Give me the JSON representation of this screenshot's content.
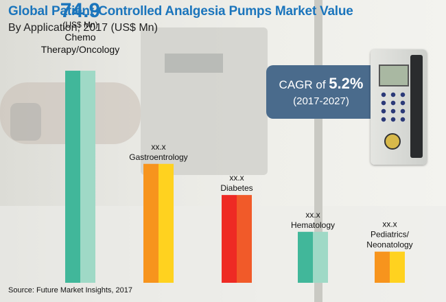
{
  "title": "Global Patient-Controlled Analgesia Pumps Market Value",
  "subtitle": "By Application, 2017 (US$ Mn)",
  "source": "Source: Future Market Insights, 2017",
  "cagr": {
    "prefix": "CAGR of ",
    "value": "5.2%",
    "range": "(2017-2027)"
  },
  "chart_data": {
    "type": "bar",
    "categories": [
      "Chemo Therapy/Oncology",
      "Gastroentrology",
      "Diabetes",
      "Hematology",
      "Pediatrics/ Neonatology"
    ],
    "category_label_lines": [
      [
        "Chemo",
        "Therapy/Oncology"
      ],
      [
        "Gastroentrology"
      ],
      [
        "Diabetes"
      ],
      [
        "Hematology"
      ],
      [
        "Pediatrics/",
        "Neonatology"
      ]
    ],
    "value_labels": [
      "74.9",
      "xx.x",
      "xx.x",
      "xx.x",
      "xx.x"
    ],
    "values": [
      74.9,
      42,
      31,
      18,
      11
    ],
    "unit_label": "(US$ Mn)",
    "ylim": [
      0,
      80
    ],
    "colors": [
      [
        "#41b79a",
        "#9fd9c6"
      ],
      [
        "#f7941d",
        "#ffd21f"
      ],
      [
        "#ee2a24",
        "#f15a29"
      ],
      [
        "#41b79a",
        "#9fd9c6"
      ],
      [
        "#f7941d",
        "#ffd21f"
      ]
    ],
    "accent": "#1b75bc"
  }
}
